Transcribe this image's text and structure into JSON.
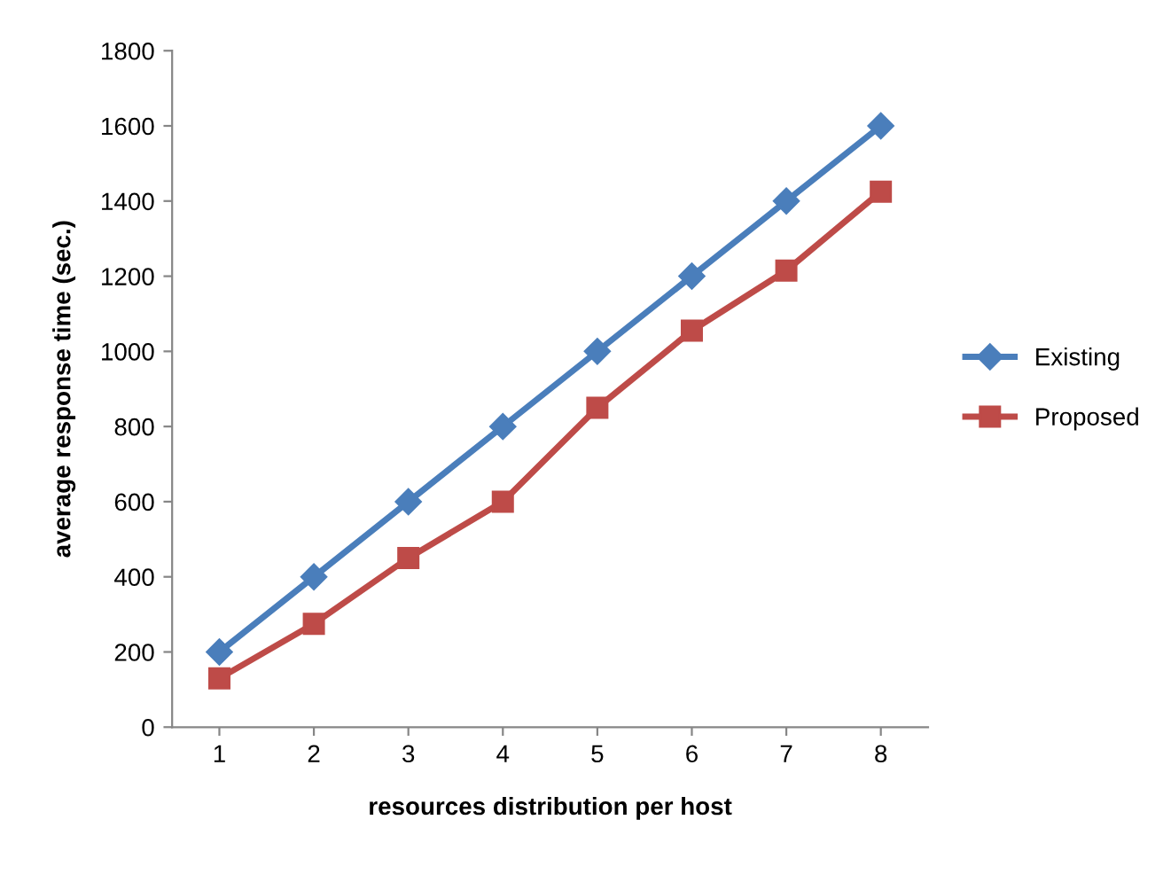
{
  "chart_data": {
    "type": "line",
    "xlabel": "resources distribution per host",
    "ylabel": "average response time (sec.)",
    "categories": [
      "1",
      "2",
      "3",
      "4",
      "5",
      "6",
      "7",
      "8"
    ],
    "series": [
      {
        "name": "Existing",
        "color": "#4a7ebb",
        "marker": "diamond",
        "values": [
          200,
          400,
          600,
          800,
          1000,
          1200,
          1400,
          1600
        ]
      },
      {
        "name": "Proposed",
        "color": "#be4b48",
        "marker": "square",
        "values": [
          130,
          275,
          450,
          600,
          850,
          1055,
          1215,
          1425
        ]
      }
    ],
    "ylim": [
      0,
      1800
    ],
    "yticks": [
      0,
      200,
      400,
      600,
      800,
      1000,
      1200,
      1400,
      1600,
      1800
    ],
    "grid": false,
    "legend": "right",
    "line_style": "solid"
  }
}
